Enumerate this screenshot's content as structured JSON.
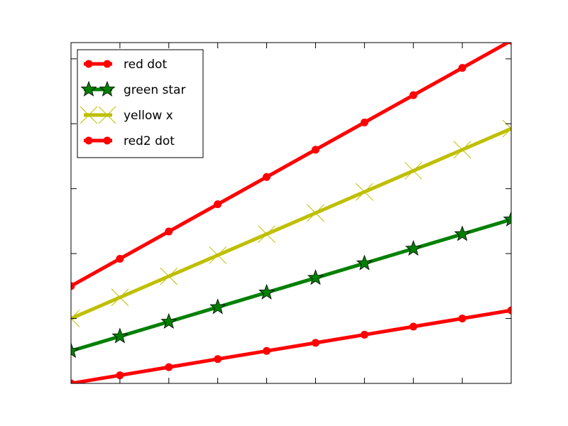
{
  "chart_data": {
    "type": "line",
    "title": "",
    "xlabel": "",
    "ylabel": "",
    "x": [
      0,
      1,
      2,
      3,
      4,
      5,
      6,
      7,
      8,
      9
    ],
    "xlim": [
      0,
      9
    ],
    "ylim": [
      0,
      10.5
    ],
    "grid": false,
    "legend_position": "upper-left",
    "tick_labels_visible": false,
    "series": [
      {
        "name": "red dot",
        "color": "#ff0000",
        "marker": "circle",
        "values": [
          3.0,
          3.84,
          4.68,
          5.52,
          6.36,
          7.2,
          8.04,
          8.88,
          9.72,
          10.56
        ]
      },
      {
        "name": "green star",
        "color": "#008000",
        "marker": "star",
        "values": [
          1.0,
          1.45,
          1.9,
          2.35,
          2.8,
          3.25,
          3.7,
          4.15,
          4.6,
          5.05
        ]
      },
      {
        "name": "yellow x",
        "color": "#bfbf00",
        "marker": "x",
        "values": [
          2.0,
          2.65,
          3.3,
          3.95,
          4.6,
          5.25,
          5.9,
          6.55,
          7.2,
          7.85
        ]
      },
      {
        "name": "red2 dot",
        "color": "#ff0000",
        "marker": "circle",
        "values": [
          0.0,
          0.25,
          0.5,
          0.75,
          1.0,
          1.25,
          1.5,
          1.75,
          2.0,
          2.25
        ]
      }
    ]
  }
}
